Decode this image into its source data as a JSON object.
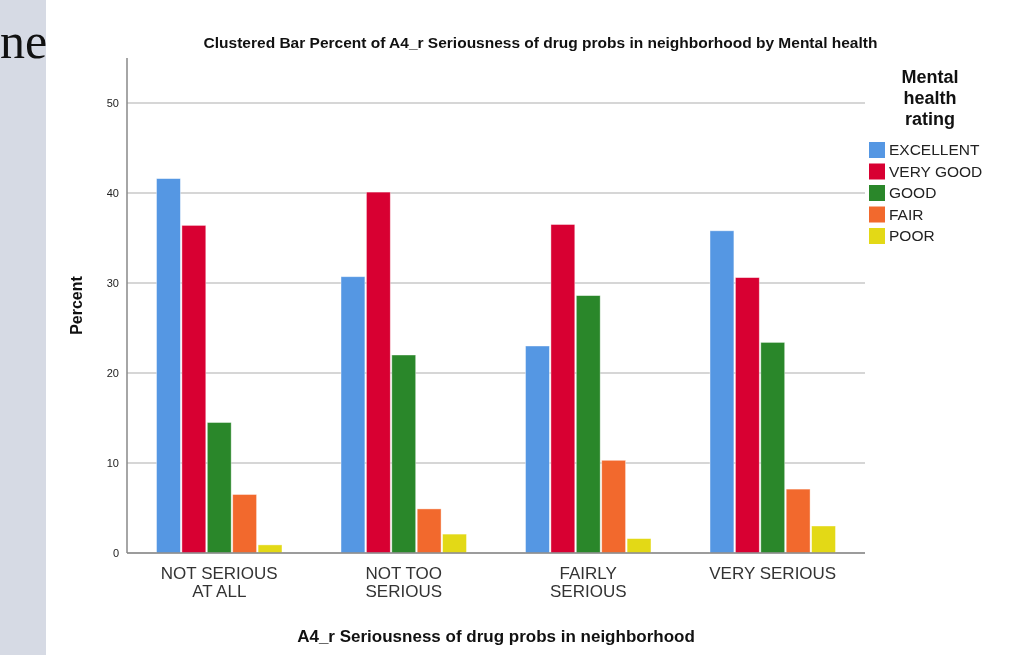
{
  "chart_data": {
    "type": "bar",
    "title": "Clustered Bar Percent of A4_r Seriousness of drug probs in neighborhood by Mental health",
    "xlabel": "A4_r Seriousness of drug probs in neighborhood",
    "ylabel": "Percent",
    "legend_title": "Mental health rating",
    "annotations": [
      "ne"
    ],
    "categories": [
      "NOT SERIOUS AT ALL",
      "NOT TOO SERIOUS",
      "FAIRLY SERIOUS",
      "VERY SERIOUS"
    ],
    "series": [
      {
        "name": "EXCELLENT",
        "color": "#5597e3",
        "values": [
          41.6,
          30.7,
          23.0,
          35.8
        ]
      },
      {
        "name": "VERY GOOD",
        "color": "#d80032",
        "values": [
          36.4,
          40.1,
          36.5,
          30.6
        ]
      },
      {
        "name": "GOOD",
        "color": "#2a872a",
        "values": [
          14.5,
          22.0,
          28.6,
          23.4
        ]
      },
      {
        "name": "FAIR",
        "color": "#f2692d",
        "values": [
          6.5,
          4.9,
          10.3,
          7.1
        ]
      },
      {
        "name": "POOR",
        "color": "#e3d916",
        "values": [
          0.9,
          2.1,
          1.6,
          3.0
        ]
      }
    ],
    "ylim": [
      0,
      55
    ],
    "yticks": [
      0,
      10,
      20,
      30,
      40,
      50
    ],
    "grid": "y",
    "legend": "right"
  }
}
